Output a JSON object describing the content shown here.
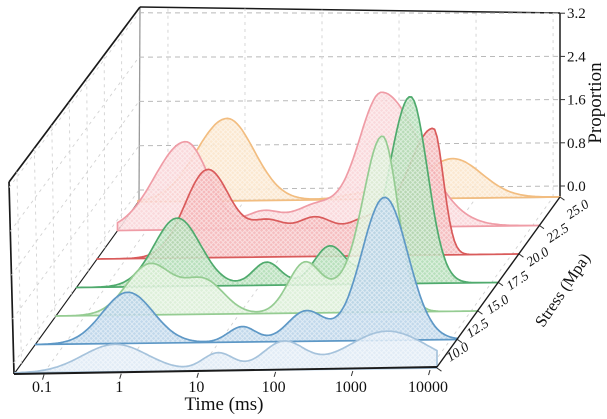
{
  "figure_title": "",
  "chart_data": {
    "type": "ridgeline_3d_kde",
    "description": "3D ridgeline (joy) plot of KDE distributions of time-to-event at seven stress levels",
    "grid": true,
    "x_axis": {
      "label": "Time (ms)",
      "scale": "log",
      "tick_values": [
        0.1,
        1,
        10,
        100,
        1000,
        10000
      ],
      "tick_labels": [
        "0.1",
        "1",
        "10",
        "100",
        "1000",
        "10000"
      ]
    },
    "z_axis": {
      "label": "Proportion",
      "tick_values": [
        0.0,
        0.8,
        1.6,
        2.4,
        3.2
      ],
      "tick_labels": [
        "0.0",
        "0.8",
        "1.6",
        "2.4",
        "3.2"
      ]
    },
    "depth_axis": {
      "label": "Stress (Mpa)",
      "tick_values": [
        10.0,
        12.5,
        15.0,
        17.5,
        20.0,
        22.5,
        25.0
      ],
      "tick_labels": [
        "10.0",
        "12.5",
        "15.0",
        "17.5",
        "20.0",
        "22.5",
        "25.0"
      ]
    },
    "series": [
      {
        "stress_label": "10.0",
        "line_color": "#a6c3dc",
        "fill_color": "#dde9f4",
        "modes": [
          {
            "t_ms": 0.83,
            "height": 0.5,
            "sigma_left": 0.42,
            "sigma_right": 0.42
          },
          {
            "t_ms": 18,
            "height": 0.32,
            "sigma_left": 0.2,
            "sigma_right": 0.2
          },
          {
            "t_ms": 126,
            "height": 0.5,
            "sigma_left": 0.27,
            "sigma_right": 0.27
          },
          {
            "t_ms": 2800,
            "height": 0.68,
            "sigma_left": 0.52,
            "sigma_right": 0.52
          }
        ]
      },
      {
        "stress_label": "12.5",
        "line_color": "#5e98c6",
        "fill_color": "#b6d1e8",
        "modes": [
          {
            "t_ms": 0.66,
            "height": 0.93,
            "sigma_left": 0.33,
            "sigma_right": 0.33
          },
          {
            "t_ms": 20,
            "height": 0.28,
            "sigma_left": 0.18,
            "sigma_right": 0.18
          },
          {
            "t_ms": 135,
            "height": 0.55,
            "sigma_left": 0.24,
            "sigma_right": 0.24
          },
          {
            "t_ms": 1400,
            "height": 2.6,
            "sigma_left": 0.3,
            "sigma_right": 0.3
          }
        ]
      },
      {
        "stress_label": "15.0",
        "line_color": "#95cc92",
        "fill_color": "#d8edd4",
        "modes": [
          {
            "t_ms": 0.69,
            "height": 0.92,
            "sigma_left": 0.3,
            "sigma_right": 0.3
          },
          {
            "t_ms": 3.5,
            "height": 0.6,
            "sigma_left": 0.26,
            "sigma_right": 0.26
          },
          {
            "t_ms": 71,
            "height": 0.92,
            "sigma_left": 0.22,
            "sigma_right": 0.22
          },
          {
            "t_ms": 200,
            "height": 0.25,
            "sigma_left": 0.18,
            "sigma_right": 0.18
          },
          {
            "t_ms": 710,
            "height": 3.2,
            "sigma_left": 0.26,
            "sigma_right": 0.2
          }
        ]
      },
      {
        "stress_label": "17.5",
        "line_color": "#4faa6d",
        "fill_color": "#abdab0",
        "modes": [
          {
            "t_ms": 0.85,
            "height": 1.24,
            "sigma_left": 0.3,
            "sigma_right": 0.3
          },
          {
            "t_ms": 12.3,
            "height": 0.42,
            "sigma_left": 0.18,
            "sigma_right": 0.18
          },
          {
            "t_ms": 81,
            "height": 0.7,
            "sigma_left": 0.21,
            "sigma_right": 0.21
          },
          {
            "t_ms": 890,
            "height": 3.4,
            "sigma_left": 0.28,
            "sigma_right": 0.22
          }
        ]
      },
      {
        "stress_label": "20.0",
        "line_color": "#d95b5b",
        "fill_color": "#f3b3b5",
        "modes": [
          {
            "t_ms": 1.15,
            "height": 1.6,
            "sigma_left": 0.3,
            "sigma_right": 0.3
          },
          {
            "t_ms": 7,
            "height": 0.6,
            "sigma_left": 0.25,
            "sigma_right": 0.25
          },
          {
            "t_ms": 28,
            "height": 0.65,
            "sigma_left": 0.25,
            "sigma_right": 0.25
          },
          {
            "t_ms": 126,
            "height": 0.6,
            "sigma_left": 0.28,
            "sigma_right": 0.28
          },
          {
            "t_ms": 955,
            "height": 2.3,
            "sigma_left": 0.35,
            "sigma_right": 0.13
          }
        ]
      },
      {
        "stress_label": "22.5",
        "line_color": "#ef9ca6",
        "fill_color": "#f9d2d6",
        "modes": [
          {
            "t_ms": 0.32,
            "height": 1.6,
            "sigma_left": 0.4,
            "sigma_right": 0.3
          },
          {
            "t_ms": 3.2,
            "height": 0.3,
            "sigma_left": 0.22,
            "sigma_right": 0.22
          },
          {
            "t_ms": 16,
            "height": 0.42,
            "sigma_left": 0.3,
            "sigma_right": 0.3
          },
          {
            "t_ms": 112,
            "height": 2.45,
            "sigma_left": 0.3,
            "sigma_right": 0.5
          }
        ]
      },
      {
        "stress_label": "25.0",
        "line_color": "#f2bd80",
        "fill_color": "#fae4c8",
        "modes": [
          {
            "t_ms": 0.6,
            "height": 1.5,
            "sigma_left": 0.4,
            "sigma_right": 0.35
          },
          {
            "t_ms": 40,
            "height": 0.12,
            "sigma_left": 0.3,
            "sigma_right": 0.3
          },
          {
            "t_ms": 500,
            "height": 0.72,
            "sigma_left": 0.38,
            "sigma_right": 0.38
          }
        ]
      }
    ]
  }
}
